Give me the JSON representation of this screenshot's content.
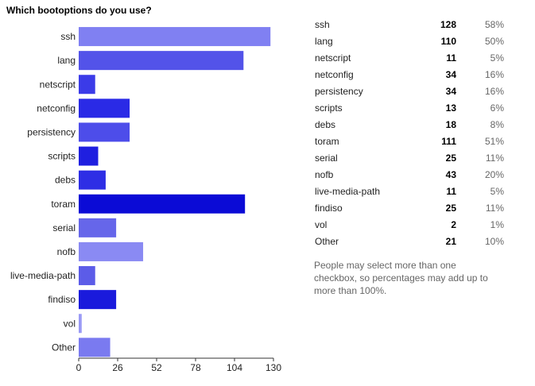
{
  "title": "Which bootoptions do you use?",
  "footnote": "People may select more than one checkbox, so percentages may add up to more than 100%.",
  "chart_data": {
    "type": "bar",
    "orientation": "horizontal",
    "categories": [
      "ssh",
      "lang",
      "netscript",
      "netconfig",
      "persistency",
      "scripts",
      "debs",
      "toram",
      "serial",
      "nofb",
      "live-media-path",
      "findiso",
      "vol",
      "Other"
    ],
    "values": [
      128,
      110,
      11,
      34,
      34,
      13,
      18,
      111,
      25,
      43,
      11,
      25,
      2,
      21
    ],
    "percentages": [
      "58%",
      "50%",
      "5%",
      "16%",
      "16%",
      "6%",
      "8%",
      "51%",
      "11%",
      "20%",
      "5%",
      "11%",
      "1%",
      "10%"
    ],
    "bar_colors": [
      "#8080f2",
      "#5353e9",
      "#3b3be8",
      "#2a2ae6",
      "#4d4dea",
      "#1f1fe0",
      "#2e2ee5",
      "#0b0bd6",
      "#6666ea",
      "#8a8af3",
      "#5c5ce8",
      "#1a1adc",
      "#9a9af5",
      "#7a7af0"
    ],
    "xlim": [
      0,
      130
    ],
    "xticks": [
      0,
      26,
      52,
      78,
      104,
      130
    ],
    "grid": false,
    "legend": "none"
  }
}
